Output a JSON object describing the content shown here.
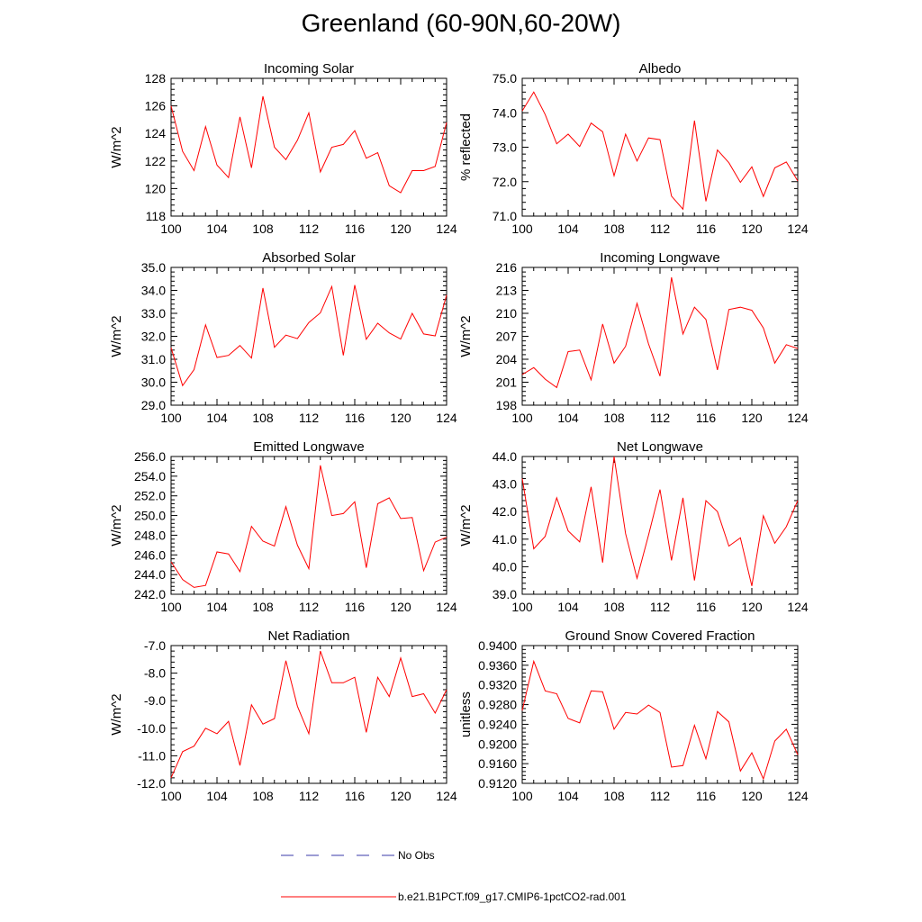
{
  "figure": {
    "title": "Greenland (60-90N,60-20W)"
  },
  "legend": [
    {
      "label": "No Obs",
      "color": "#3a3aa8",
      "style": "dashed"
    },
    {
      "label": "b.e21.B1PCT.f09_g17.CMIP6-1pctCO2-rad.001",
      "color": "#ff0000",
      "style": "solid"
    }
  ],
  "chart_data": [
    {
      "type": "line",
      "title": "Incoming Solar",
      "xlabel": "",
      "ylabel": "W/m^2",
      "xlim": [
        100,
        124
      ],
      "ylim": [
        118,
        128
      ],
      "xticks": [
        100,
        104,
        108,
        112,
        116,
        120,
        124
      ],
      "yticks": [
        118,
        120,
        122,
        124,
        126,
        128
      ],
      "ytick_labels": [
        "118",
        "120",
        "122",
        "124",
        "126",
        "128"
      ],
      "series": [
        {
          "color": "#ff0000",
          "x": [
            100,
            101,
            102,
            103,
            104,
            105,
            106,
            107,
            108,
            109,
            110,
            111,
            112,
            113,
            114,
            115,
            116,
            117,
            118,
            119,
            120,
            121,
            122,
            123,
            124
          ],
          "values": [
            126.0,
            122.7,
            121.3,
            124.5,
            121.7,
            120.8,
            125.2,
            121.5,
            126.7,
            123.0,
            122.1,
            123.5,
            125.5,
            121.2,
            123.0,
            123.2,
            124.2,
            122.2,
            122.6,
            120.2,
            119.7,
            121.3,
            121.3,
            121.6,
            124.8
          ]
        }
      ]
    },
    {
      "type": "line",
      "title": "Albedo",
      "xlabel": "",
      "ylabel": "% reflected",
      "xlim": [
        100,
        124
      ],
      "ylim": [
        71.0,
        75.0
      ],
      "xticks": [
        100,
        104,
        108,
        112,
        116,
        120,
        124
      ],
      "yticks": [
        71.0,
        72.0,
        73.0,
        74.0,
        75.0
      ],
      "ytick_labels": [
        "71.0",
        "72.0",
        "73.0",
        "74.0",
        "75.0"
      ],
      "series": [
        {
          "color": "#ff0000",
          "x": [
            100,
            101,
            102,
            103,
            104,
            105,
            106,
            107,
            108,
            109,
            110,
            111,
            112,
            113,
            114,
            115,
            116,
            117,
            118,
            119,
            120,
            121,
            122,
            123,
            124
          ],
          "values": [
            74.05,
            74.6,
            73.95,
            73.1,
            73.38,
            73.02,
            73.7,
            73.45,
            72.17,
            73.38,
            72.6,
            73.27,
            73.22,
            71.58,
            71.2,
            73.77,
            71.43,
            72.92,
            72.55,
            71.98,
            72.43,
            71.57,
            72.4,
            72.57,
            72.02
          ]
        }
      ]
    },
    {
      "type": "line",
      "title": "Absorbed Solar",
      "xlabel": "",
      "ylabel": "W/m^2",
      "xlim": [
        100,
        124
      ],
      "ylim": [
        29.0,
        35.0
      ],
      "xticks": [
        100,
        104,
        108,
        112,
        116,
        120,
        124
      ],
      "yticks": [
        29.0,
        30.0,
        31.0,
        32.0,
        33.0,
        34.0,
        35.0
      ],
      "ytick_labels": [
        "29.0",
        "30.0",
        "31.0",
        "32.0",
        "33.0",
        "34.0",
        "35.0"
      ],
      "series": [
        {
          "color": "#ff0000",
          "x": [
            100,
            101,
            102,
            103,
            104,
            105,
            106,
            107,
            108,
            109,
            110,
            111,
            112,
            113,
            114,
            115,
            116,
            117,
            118,
            119,
            120,
            121,
            122,
            123,
            124
          ],
          "values": [
            31.5,
            29.85,
            30.55,
            32.5,
            31.08,
            31.17,
            31.6,
            31.05,
            34.1,
            31.52,
            32.05,
            31.9,
            32.6,
            33.02,
            34.17,
            31.17,
            34.23,
            31.87,
            32.57,
            32.15,
            31.88,
            33.0,
            32.1,
            32.02,
            33.8
          ]
        }
      ]
    },
    {
      "type": "line",
      "title": "Incoming Longwave",
      "xlabel": "",
      "ylabel": "W/m^2",
      "xlim": [
        100,
        124
      ],
      "ylim": [
        198,
        216
      ],
      "xticks": [
        100,
        104,
        108,
        112,
        116,
        120,
        124
      ],
      "yticks": [
        198,
        201,
        204,
        207,
        210,
        213,
        216
      ],
      "ytick_labels": [
        "198",
        "201",
        "204",
        "207",
        "210",
        "213",
        "216"
      ],
      "series": [
        {
          "color": "#ff0000",
          "x": [
            100,
            101,
            102,
            103,
            104,
            105,
            106,
            107,
            108,
            109,
            110,
            111,
            112,
            113,
            114,
            115,
            116,
            117,
            118,
            119,
            120,
            121,
            122,
            123,
            124
          ],
          "values": [
            202.0,
            202.9,
            201.4,
            200.3,
            205.0,
            205.2,
            201.3,
            208.6,
            203.5,
            205.7,
            211.3,
            206.0,
            201.8,
            214.7,
            207.3,
            210.8,
            209.2,
            202.6,
            210.5,
            210.8,
            210.4,
            208.1,
            203.5,
            205.9,
            205.4
          ]
        }
      ]
    },
    {
      "type": "line",
      "title": "Emitted Longwave",
      "xlabel": "",
      "ylabel": "W/m^2",
      "xlim": [
        100,
        124
      ],
      "ylim": [
        242.0,
        256.0
      ],
      "xticks": [
        100,
        104,
        108,
        112,
        116,
        120,
        124
      ],
      "yticks": [
        242.0,
        244.0,
        246.0,
        248.0,
        250.0,
        252.0,
        254.0,
        256.0
      ],
      "ytick_labels": [
        "242.0",
        "244.0",
        "246.0",
        "248.0",
        "250.0",
        "252.0",
        "254.0",
        "256.0"
      ],
      "series": [
        {
          "color": "#ff0000",
          "x": [
            100,
            101,
            102,
            103,
            104,
            105,
            106,
            107,
            108,
            109,
            110,
            111,
            112,
            113,
            114,
            115,
            116,
            117,
            118,
            119,
            120,
            121,
            122,
            123,
            124
          ],
          "values": [
            245.3,
            243.5,
            242.7,
            242.9,
            246.3,
            246.1,
            244.3,
            248.9,
            247.4,
            246.9,
            250.9,
            247.0,
            244.6,
            255.1,
            250.0,
            250.2,
            251.4,
            244.7,
            251.2,
            251.8,
            249.7,
            249.8,
            244.4,
            247.3,
            247.8
          ]
        }
      ]
    },
    {
      "type": "line",
      "title": "Net Longwave",
      "xlabel": "",
      "ylabel": "W/m^2",
      "xlim": [
        100,
        124
      ],
      "ylim": [
        39.0,
        44.0
      ],
      "xticks": [
        100,
        104,
        108,
        112,
        116,
        120,
        124
      ],
      "yticks": [
        39.0,
        40.0,
        41.0,
        42.0,
        43.0,
        44.0
      ],
      "ytick_labels": [
        "39.0",
        "40.0",
        "41.0",
        "42.0",
        "43.0",
        "44.0"
      ],
      "series": [
        {
          "color": "#ff0000",
          "x": [
            100,
            101,
            102,
            103,
            104,
            105,
            106,
            107,
            108,
            109,
            110,
            111,
            112,
            113,
            114,
            115,
            116,
            117,
            118,
            119,
            120,
            121,
            122,
            123,
            124
          ],
          "values": [
            43.2,
            40.65,
            41.1,
            42.5,
            41.3,
            40.9,
            42.9,
            40.15,
            44.0,
            41.2,
            39.58,
            41.15,
            42.8,
            40.23,
            42.5,
            39.5,
            42.4,
            42.0,
            40.75,
            41.05,
            39.3,
            41.85,
            40.85,
            41.45,
            42.4
          ]
        }
      ]
    },
    {
      "type": "line",
      "title": "Net Radiation",
      "xlabel": "",
      "ylabel": "W/m^2",
      "xlim": [
        100,
        124
      ],
      "ylim": [
        -12.0,
        -7.0
      ],
      "xticks": [
        100,
        104,
        108,
        112,
        116,
        120,
        124
      ],
      "yticks": [
        -12.0,
        -11.0,
        -10.0,
        -9.0,
        -8.0,
        -7.0
      ],
      "ytick_labels": [
        "-12.0",
        "-11.0",
        "-10.0",
        "-9.0",
        "-8.0",
        "-7.0"
      ],
      "series": [
        {
          "color": "#ff0000",
          "x": [
            100,
            101,
            102,
            103,
            104,
            105,
            106,
            107,
            108,
            109,
            110,
            111,
            112,
            113,
            114,
            115,
            116,
            117,
            118,
            119,
            120,
            121,
            122,
            123,
            124
          ],
          "values": [
            -11.8,
            -10.85,
            -10.65,
            -10.0,
            -10.2,
            -9.75,
            -11.35,
            -9.15,
            -9.85,
            -9.65,
            -7.55,
            -9.2,
            -10.2,
            -7.2,
            -8.35,
            -8.35,
            -8.15,
            -10.15,
            -8.15,
            -8.85,
            -7.45,
            -8.85,
            -8.75,
            -9.45,
            -8.6
          ]
        }
      ]
    },
    {
      "type": "line",
      "title": "Ground Snow Covered Fraction",
      "xlabel": "",
      "ylabel": "unitless",
      "xlim": [
        100,
        124
      ],
      "ylim": [
        0.912,
        0.94
      ],
      "xticks": [
        100,
        104,
        108,
        112,
        116,
        120,
        124
      ],
      "yticks": [
        0.912,
        0.916,
        0.92,
        0.924,
        0.928,
        0.932,
        0.936,
        0.94
      ],
      "ytick_labels": [
        "0.9120",
        "0.9160",
        "0.9200",
        "0.9240",
        "0.9280",
        "0.9320",
        "0.9360",
        "0.9400"
      ],
      "series": [
        {
          "color": "#ff0000",
          "x": [
            100,
            101,
            102,
            103,
            104,
            105,
            106,
            107,
            108,
            109,
            110,
            111,
            112,
            113,
            114,
            115,
            116,
            117,
            118,
            119,
            120,
            121,
            122,
            123,
            124
          ],
          "values": [
            0.9268,
            0.9368,
            0.9308,
            0.9302,
            0.9252,
            0.9243,
            0.9308,
            0.9306,
            0.923,
            0.9264,
            0.9261,
            0.9279,
            0.9264,
            0.9153,
            0.9156,
            0.9238,
            0.917,
            0.9266,
            0.9245,
            0.9145,
            0.9182,
            0.9129,
            0.9206,
            0.923,
            0.9178
          ]
        }
      ]
    }
  ]
}
